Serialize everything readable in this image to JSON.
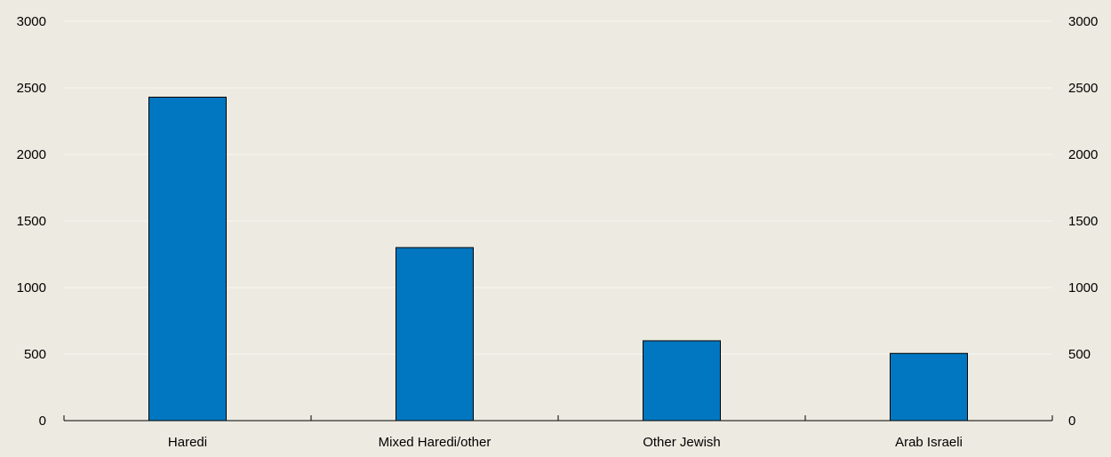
{
  "chart_data": {
    "type": "bar",
    "title": "",
    "xlabel": "",
    "ylabel": "",
    "categories": [
      "Haredi",
      "Mixed Haredi/other",
      "Other Jewish",
      "Arab Israeli"
    ],
    "values": [
      2430,
      1300,
      600,
      505
    ],
    "ylim": [
      0,
      3000
    ],
    "yticks": [
      "0",
      "500",
      "1000",
      "1500",
      "2000",
      "2500",
      "3000"
    ],
    "secondary_axis_ticks": [
      "0",
      "500",
      "1000",
      "1500",
      "2000",
      "2500",
      "3000"
    ],
    "grid": "horizontal",
    "legend": "none",
    "colors": {
      "bar_fill": "#0077c0",
      "bar_stroke": "#000000",
      "background": "#edebe1",
      "gridline": "#f7f6f0",
      "axis": "#000000"
    }
  }
}
